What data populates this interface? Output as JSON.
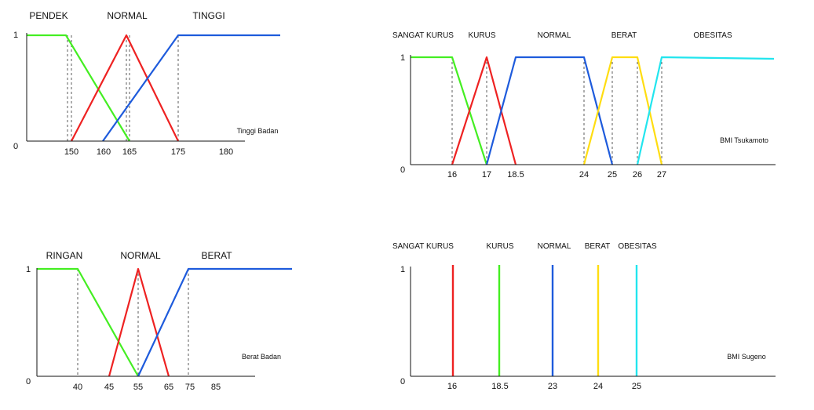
{
  "colors": {
    "green": "#44ee22",
    "red": "#ee2222",
    "blue": "#1e5bdc",
    "yellow": "#ffdd11",
    "cyan": "#22e5ee",
    "axis": "#111111",
    "guide": "#333333"
  },
  "chart_data": [
    {
      "type": "line",
      "title": "",
      "xlabel": "Tinggi Badan",
      "ylabel": "",
      "xlim": [
        140,
        185
      ],
      "ylim": [
        0,
        1
      ],
      "ytick_labels": [
        "0",
        "1"
      ],
      "xtick_labels": [
        "150",
        "160",
        "165",
        "175",
        "180"
      ],
      "xtick_values": [
        150,
        160,
        165,
        175,
        180
      ],
      "set_labels": [
        "PENDEK",
        "NORMAL",
        "TINGGI"
      ],
      "series": [
        {
          "name": "PENDEK",
          "color": "green",
          "x": [
            140,
            148,
            165
          ],
          "y": [
            1,
            1,
            0
          ]
        },
        {
          "name": "NORMAL",
          "color": "red",
          "x": [
            150,
            160,
            170
          ],
          "y": [
            0,
            1,
            0
          ]
        },
        {
          "name": "TINGGI",
          "color": "blue",
          "x": [
            155,
            165,
            185
          ],
          "y": [
            0,
            1,
            1
          ]
        }
      ],
      "guides": [
        148,
        150,
        160,
        165,
        175
      ]
    },
    {
      "type": "line",
      "title": "",
      "xlabel": "BMI Tsukamoto",
      "ylabel": "",
      "xlim": [
        16,
        27
      ],
      "ylim": [
        0,
        1
      ],
      "ytick_labels": [
        "0",
        "1"
      ],
      "xtick_labels": [
        "16",
        "17",
        "18.5",
        "24",
        "25",
        "26",
        "27"
      ],
      "xtick_values": [
        16,
        17,
        18.5,
        24,
        25,
        26,
        27
      ],
      "set_labels": [
        "SANGAT KURUS",
        "KURUS",
        "NORMAL",
        "BERAT",
        "OBESITAS"
      ],
      "series": [
        {
          "name": "SANGAT KURUS",
          "color": "green",
          "x": [
            16,
            17,
            18.5
          ],
          "y": [
            1,
            1,
            0
          ]
        },
        {
          "name": "KURUS",
          "color": "red",
          "x": [
            17,
            18.5,
            19
          ],
          "y": [
            0,
            1,
            0
          ]
        },
        {
          "name": "NORMAL",
          "color": "blue",
          "x": [
            18.5,
            19,
            24,
            25
          ],
          "y": [
            0,
            1,
            1,
            0
          ]
        },
        {
          "name": "BERAT",
          "color": "yellow",
          "x": [
            24,
            25,
            26,
            27
          ],
          "y": [
            0,
            1,
            1,
            0
          ]
        },
        {
          "name": "OBESITAS",
          "color": "cyan",
          "x": [
            26,
            27,
            27
          ],
          "y": [
            0,
            1,
            1
          ]
        }
      ],
      "guides": [
        17,
        18.5,
        24,
        25,
        26,
        27
      ]
    },
    {
      "type": "line",
      "title": "",
      "xlabel": "Berat Badan",
      "ylabel": "",
      "xlim": [
        30,
        95
      ],
      "ylim": [
        0,
        1
      ],
      "ytick_labels": [
        "0",
        "1"
      ],
      "xtick_labels": [
        "40",
        "45",
        "55",
        "65",
        "75",
        "85"
      ],
      "xtick_values": [
        40,
        45,
        55,
        65,
        75,
        85
      ],
      "set_labels": [
        "RINGAN",
        "NORMAL",
        "BERAT"
      ],
      "series": [
        {
          "name": "RINGAN",
          "color": "green",
          "x": [
            30,
            40,
            55
          ],
          "y": [
            1,
            1,
            0
          ]
        },
        {
          "name": "NORMAL",
          "color": "red",
          "x": [
            45,
            55,
            65
          ],
          "y": [
            0,
            1,
            0
          ]
        },
        {
          "name": "BERAT",
          "color": "blue",
          "x": [
            55,
            75,
            95
          ],
          "y": [
            0,
            1,
            1
          ]
        }
      ],
      "guides": [
        40,
        55,
        75
      ]
    },
    {
      "type": "bar",
      "title": "",
      "xlabel": "BMI Sugeno",
      "ylabel": "",
      "ylim": [
        0,
        1
      ],
      "ytick_labels": [
        "0",
        "1"
      ],
      "categories": [
        "16",
        "18.5",
        "23",
        "24",
        "25"
      ],
      "set_labels": [
        "SANGAT KURUS",
        "KURUS",
        "NORMAL",
        "BERAT",
        "OBESITAS"
      ],
      "series": [
        {
          "name": "SANGAT KURUS",
          "color": "red",
          "x": 16,
          "y": 1
        },
        {
          "name": "KURUS",
          "color": "green",
          "x": 18.5,
          "y": 1
        },
        {
          "name": "NORMAL",
          "color": "blue",
          "x": 23,
          "y": 1
        },
        {
          "name": "BERAT",
          "color": "yellow",
          "x": 24,
          "y": 1
        },
        {
          "name": "OBESITAS",
          "color": "cyan",
          "x": 25,
          "y": 1
        }
      ]
    }
  ]
}
